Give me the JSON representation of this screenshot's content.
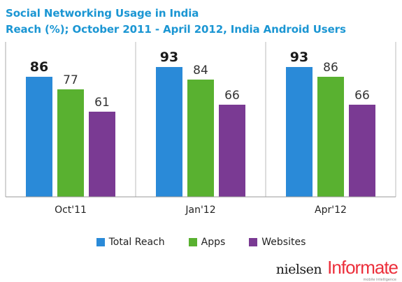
{
  "chart_data": {
    "type": "bar",
    "title": "Social Networking Usage in India",
    "subtitle": "Reach (%); October 2011 - April 2012, India Android Users",
    "categories": [
      "Oct'11",
      "Jan'12",
      "Apr'12"
    ],
    "series": [
      {
        "name": "Total Reach",
        "color": "#2a8ad8",
        "values": [
          86,
          93,
          93
        ]
      },
      {
        "name": "Apps",
        "color": "#59b130",
        "values": [
          77,
          84,
          86
        ]
      },
      {
        "name": "Websites",
        "color": "#7a3a93",
        "values": [
          61,
          66,
          66
        ]
      }
    ],
    "ylim": [
      0,
      100
    ],
    "grid": false,
    "legend": "bottom",
    "data_labels": true
  },
  "logos": {
    "nielsen": "nielsen",
    "informate": "Informate",
    "informate_tagline": "mobile intelligence"
  }
}
